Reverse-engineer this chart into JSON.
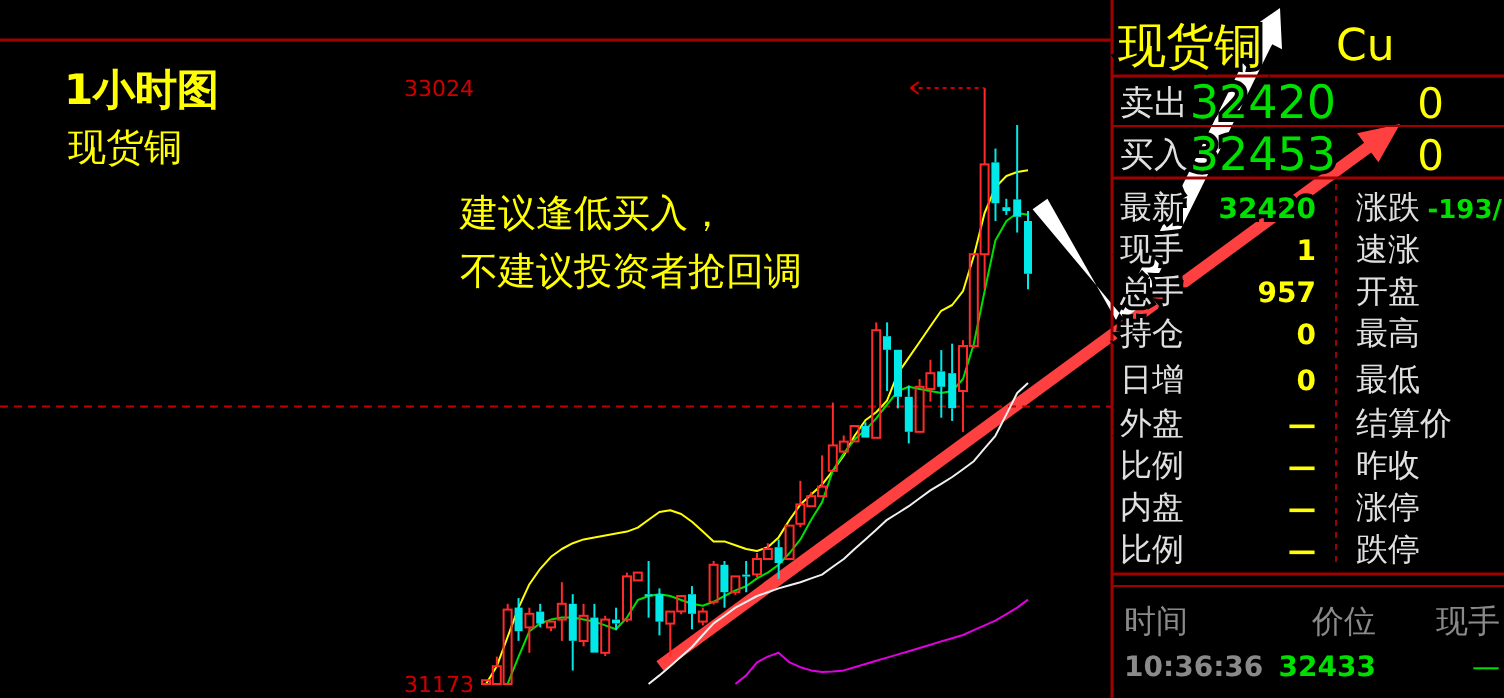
{
  "chart_data": [
    {
      "type": "candlestick",
      "title": "1小时图",
      "subtitle": "现货铜",
      "ylim": [
        31173,
        33024
      ],
      "yticks": [
        31173,
        33024
      ],
      "categories": [
        null,
        null,
        null,
        null,
        null,
        null,
        null,
        null,
        null,
        null,
        null,
        null,
        null,
        null,
        null,
        null,
        null,
        null,
        null,
        null,
        null,
        null,
        null,
        null,
        null,
        null,
        null,
        null,
        null,
        null,
        null,
        null,
        null,
        null,
        null,
        null,
        null,
        null,
        null,
        null,
        null,
        null,
        null,
        null,
        null,
        null,
        null,
        null,
        null,
        null,
        null
      ],
      "ohlc": [
        [
          31173,
          31191,
          31173,
          31185
        ],
        [
          31173,
          31258,
          31173,
          31228
        ],
        [
          31173,
          31422,
          31173,
          31404
        ],
        [
          31410,
          31440,
          31307,
          31337
        ],
        [
          31349,
          31410,
          31270,
          31391
        ],
        [
          31398,
          31422,
          31349,
          31361
        ],
        [
          31349,
          31373,
          31337,
          31367
        ],
        [
          31373,
          31489,
          31307,
          31422
        ],
        [
          31422,
          31452,
          31215,
          31307
        ],
        [
          31307,
          31422,
          31290,
          31385
        ],
        [
          31379,
          31422,
          31270,
          31270
        ],
        [
          31270,
          31385,
          31260,
          31373
        ],
        [
          31373,
          31410,
          31340,
          31361
        ],
        [
          31373,
          31519,
          31365,
          31507
        ],
        [
          31495,
          31525,
          31490,
          31519
        ],
        [
          31452,
          31555,
          31379,
          31446
        ],
        [
          31452,
          31470,
          31324,
          31367
        ],
        [
          31361,
          31398,
          31258,
          31398
        ],
        [
          31398,
          31452,
          31390,
          31446
        ],
        [
          31452,
          31477,
          31343,
          31391
        ],
        [
          31367,
          31410,
          31355,
          31398
        ],
        [
          31428,
          31555,
          31420,
          31543
        ],
        [
          31543,
          31555,
          31410,
          31458
        ],
        [
          31458,
          31510,
          31450,
          31507
        ],
        [
          31513,
          31555,
          31458,
          31507
        ],
        [
          31513,
          31580,
          31505,
          31561
        ],
        [
          31561,
          31610,
          31555,
          31592
        ],
        [
          31598,
          31622,
          31500,
          31549
        ],
        [
          31561,
          31671,
          31555,
          31665
        ],
        [
          31671,
          31804,
          31660,
          31731
        ],
        [
          31725,
          31770,
          31720,
          31756
        ],
        [
          31756,
          31883,
          31750,
          31786
        ],
        [
          31835,
          32047,
          31830,
          31914
        ],
        [
          31895,
          31945,
          31890,
          31926
        ],
        [
          31926,
          31980,
          31920,
          31974
        ],
        [
          31974,
          31986,
          31935,
          31938
        ],
        [
          31938,
          32296,
          31938,
          32272
        ],
        [
          32253,
          32296,
          32083,
          32211
        ],
        [
          32211,
          32217,
          32029,
          32065
        ],
        [
          32065,
          32100,
          31920,
          31956
        ],
        [
          31956,
          32120,
          31950,
          32096
        ],
        [
          32089,
          32180,
          32050,
          32138
        ],
        [
          32144,
          32210,
          32000,
          32096
        ],
        [
          32138,
          32230,
          31990,
          32029
        ],
        [
          32083,
          32241,
          31956,
          32223
        ],
        [
          32223,
          32510,
          32215,
          32508
        ],
        [
          32508,
          33024,
          32400,
          32787
        ],
        [
          32793,
          32836,
          32611,
          32666
        ],
        [
          32654,
          32680,
          32630,
          32642
        ],
        [
          32678,
          32909,
          32575,
          32624
        ],
        [
          32611,
          32642,
          32399,
          32447
        ]
      ],
      "series": [
        {
          "type": "line",
          "color": "#ffff00",
          "values": [
            31173,
            31228,
            31319,
            31410,
            31483,
            31531,
            31568,
            31592,
            31610,
            31622,
            31628,
            31634,
            31640,
            31646,
            31659,
            31683,
            31707,
            31713,
            31701,
            31677,
            31646,
            31616,
            31616,
            31604,
            31592,
            31586,
            31598,
            31628,
            31683,
            31731,
            31762,
            31792,
            31835,
            31883,
            31944,
            31992,
            32017,
            32053,
            32138,
            32187,
            32235,
            32284,
            32332,
            32350,
            32393,
            32502,
            32636,
            32715,
            32751,
            32763,
            32769
          ]
        },
        {
          "type": "line",
          "color": "#00e000",
          "values": [
            null,
            null,
            31173,
            31258,
            31337,
            31361,
            31373,
            31379,
            31379,
            31373,
            31367,
            31355,
            31343,
            31379,
            31434,
            31446,
            31452,
            31446,
            31434,
            31422,
            31416,
            31428,
            31446,
            31464,
            31477,
            31501,
            31519,
            31543,
            31580,
            31622,
            31683,
            31737,
            31835,
            31889,
            31932,
            31962,
            31998,
            32041,
            32083,
            32096,
            32089,
            32083,
            32077,
            32083,
            32120,
            32229,
            32393,
            32551,
            32611,
            32636,
            32630
          ]
        },
        {
          "type": "line",
          "color": "#f0f0f0",
          "values": [
            null,
            null,
            null,
            null,
            null,
            null,
            null,
            null,
            null,
            null,
            null,
            null,
            null,
            null,
            null,
            31173,
            31200,
            31228,
            31258,
            31288,
            31325,
            31361,
            31385,
            31410,
            31428,
            31446,
            31458,
            31470,
            31480,
            31489,
            31501,
            31513,
            31537,
            31561,
            31592,
            31622,
            31652,
            31683,
            31704,
            31725,
            31750,
            31774,
            31795,
            31816,
            31840,
            31865,
            31905,
            31944,
            32010,
            32077,
            32108
          ]
        },
        {
          "type": "line",
          "color": "#e000e0",
          "values": [
            null,
            null,
            null,
            null,
            null,
            null,
            null,
            null,
            null,
            null,
            null,
            null,
            null,
            null,
            null,
            null,
            null,
            null,
            null,
            null,
            null,
            null,
            null,
            31173,
            31200,
            31240,
            31258,
            31270,
            31240,
            31225,
            31215,
            31210,
            31212,
            31215,
            31225,
            31235,
            31245,
            31255,
            31265,
            31275,
            31285,
            31295,
            31305,
            31315,
            31325,
            31340,
            31355,
            31370,
            31390,
            31410,
            31435
          ]
        }
      ],
      "ref_lines": [
        {
          "axis": "y",
          "value": 32035,
          "color": "#c00000",
          "line_style": "dashed"
        }
      ],
      "annotations": [
        "建议逢低买入，",
        "不建议投资者抢回调"
      ]
    },
    {
      "type": "other",
      "title": "现货铜",
      "annotations": [
        "Cu",
        "卖出",
        "32420",
        "0",
        "买入",
        "32453",
        "0",
        "最新",
        "现手",
        "总手",
        "持仓",
        "日增",
        "外盘",
        "比例",
        "内盘",
        "比例",
        "32420",
        "1",
        "957",
        "0",
        "0",
        "—",
        "—",
        "—",
        "—",
        "涨跌",
        "速涨",
        "开盘",
        "最高",
        "最低",
        "结算价",
        "昨收",
        "涨停",
        "跌停",
        "-193/",
        "时间",
        "价位",
        "现手",
        "10:36:36",
        "32433",
        "—"
      ]
    }
  ]
}
